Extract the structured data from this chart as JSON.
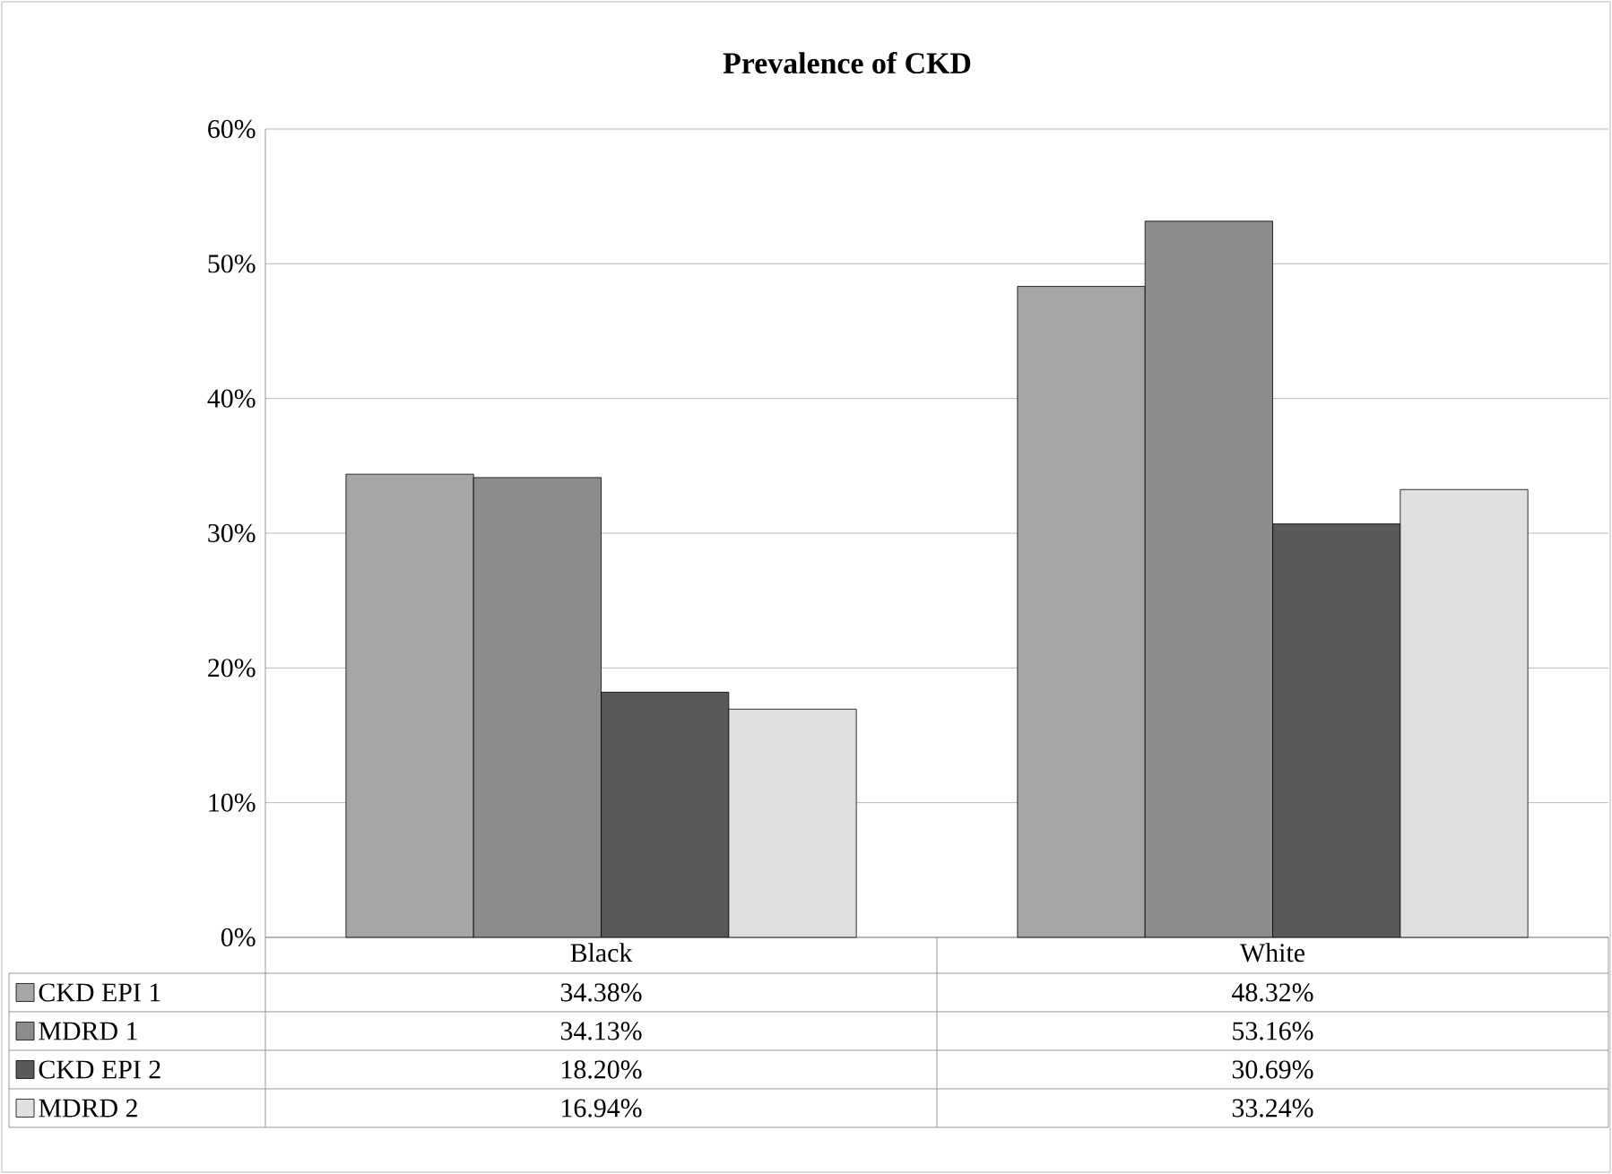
{
  "chart_data": {
    "type": "bar",
    "title": "Prevalence of CKD",
    "categories": [
      "Black",
      "White"
    ],
    "series": [
      {
        "name": "CKD EPI 1",
        "color": "#a6a6a6",
        "values": [
          34.38,
          48.32
        ],
        "value_labels": [
          "34.38%",
          "48.32%"
        ]
      },
      {
        "name": "MDRD 1",
        "color": "#8c8c8c",
        "values": [
          34.13,
          53.16
        ],
        "value_labels": [
          "34.13%",
          "53.16%"
        ]
      },
      {
        "name": "CKD EPI 2",
        "color": "#595959",
        "values": [
          18.2,
          30.69
        ],
        "value_labels": [
          "18.20%",
          "30.69%"
        ]
      },
      {
        "name": "MDRD 2",
        "color": "#e0e0e0",
        "values": [
          16.94,
          33.24
        ],
        "value_labels": [
          "16.94%",
          "33.24%"
        ]
      }
    ],
    "ylim": [
      0,
      60
    ],
    "yticks": [
      {
        "value": 0,
        "label": "0%"
      },
      {
        "value": 10,
        "label": "10%"
      },
      {
        "value": 20,
        "label": "20%"
      },
      {
        "value": 30,
        "label": "30%"
      },
      {
        "value": 40,
        "label": "40%"
      },
      {
        "value": 50,
        "label": "50%"
      },
      {
        "value": 60,
        "label": "60%"
      }
    ],
    "grid": "y",
    "legend": "bottom"
  }
}
